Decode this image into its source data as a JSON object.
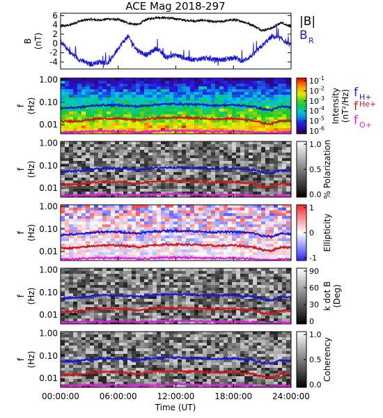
{
  "title": "ACE Mag 2018-297",
  "chart_data": {
    "type": "line",
    "title": "ACE Mag 2018-297",
    "xlabel": "Time (UT)",
    "x_ticks": [
      "00:00:00",
      "06:00:00",
      "12:00:00",
      "18:00:00",
      "24:00:00"
    ],
    "x_range_hours": [
      0,
      24
    ],
    "top_panel": {
      "ylabel_top": "B",
      "ylabel_bottom": "(nT)",
      "ylim": [
        -5.5,
        6.5
      ],
      "y_ticks": [
        "6",
        "4",
        "2",
        "0",
        "-2",
        "-4"
      ],
      "y_tick_values": [
        6,
        4,
        2,
        0,
        -2,
        -4
      ],
      "legend": [
        {
          "label": "|B|",
          "color": "#000000"
        },
        {
          "label": "B",
          "sub": "R",
          "color": "#1a1acc"
        }
      ],
      "series": [
        {
          "name": "|B|",
          "color": "#000000",
          "x": [
            0,
            1,
            2,
            3,
            4,
            5,
            6,
            7,
            8,
            9,
            10,
            11,
            12,
            13,
            14,
            15,
            16,
            17,
            18,
            19,
            20,
            21,
            22,
            23,
            24
          ],
          "y": [
            3.6,
            4.0,
            4.8,
            5.2,
            5.0,
            5.3,
            5.1,
            4.4,
            4.0,
            5.2,
            5.6,
            5.5,
            5.3,
            5.0,
            4.8,
            5.0,
            4.6,
            4.8,
            5.1,
            4.7,
            3.9,
            2.8,
            3.3,
            4.5,
            3.6
          ]
        },
        {
          "name": "B",
          "color": "#1a1acc",
          "x": [
            0,
            1,
            2,
            3,
            4,
            5,
            6,
            7,
            8,
            9,
            10,
            11,
            12,
            13,
            14,
            15,
            16,
            17,
            18,
            19,
            20,
            21,
            22,
            23,
            24
          ],
          "y": [
            0.5,
            -2.0,
            -3.5,
            -4.5,
            -4.0,
            -4.2,
            -1.0,
            1.5,
            -1.5,
            -2.5,
            -1.0,
            -3.0,
            -2.5,
            -3.2,
            -3.5,
            -3.2,
            -3.5,
            -3.5,
            -3.0,
            -3.8,
            -2.5,
            -0.5,
            1.5,
            1.0,
            -0.5
          ]
        }
      ]
    },
    "freq_panels": [
      {
        "kind": "spectrogram",
        "palette": "rainbow",
        "colorbar_title": "Intensity",
        "colorbar_unit": "(nT²/Hz)",
        "colorbar_ticks": [
          "10",
          "10",
          "10",
          "10",
          "10",
          "10"
        ],
        "colorbar_exponents": [
          "-1",
          "-2",
          "-3",
          "-4",
          "-5",
          "-6"
        ],
        "gyro_legend": [
          {
            "base": "f",
            "sub": "H+",
            "color": "#1a1acc"
          },
          {
            "base": "f",
            "sub": "He+",
            "color": "#cc1a1a"
          },
          {
            "base": "f",
            "sub": "O+",
            "color": "#e020e0"
          }
        ]
      },
      {
        "kind": "polarization",
        "palette": "gray",
        "colorbar_title": "% Polarization",
        "colorbar_ticks": [
          "1.0",
          "0.5",
          "0.0"
        ]
      },
      {
        "kind": "ellipticity",
        "palette": "diverging",
        "colorbar_title": "Ellipticity",
        "colorbar_ticks": [
          "1",
          "0",
          "-1"
        ]
      },
      {
        "kind": "wave-normal-angle",
        "palette": "gray",
        "colorbar_title": "k dot B",
        "colorbar_unit": "(Deg)",
        "colorbar_ticks": [
          "90",
          "60",
          "30",
          "0"
        ]
      },
      {
        "kind": "coherence",
        "palette": "gray",
        "colorbar_title": "Coherency",
        "colorbar_ticks": [
          "1.0",
          "0.5",
          "0.0"
        ]
      }
    ],
    "freq_axis": {
      "ylabel_top": "f",
      "ylabel_bottom": "(Hz)",
      "scale": "log",
      "ylim": [
        0.004,
        1.2
      ],
      "y_ticks": [
        "1.00",
        "0.10",
        "0.01"
      ],
      "y_tick_values": [
        1.0,
        0.1,
        0.01
      ]
    },
    "gyrofrequency_series": [
      {
        "name": "f_H+",
        "color": "#1a1acc",
        "x": [
          0,
          2,
          4,
          6,
          8,
          10,
          12,
          14,
          16,
          18,
          20,
          21,
          22,
          23,
          24
        ],
        "y": [
          0.055,
          0.06,
          0.075,
          0.075,
          0.065,
          0.08,
          0.085,
          0.08,
          0.073,
          0.076,
          0.066,
          0.05,
          0.045,
          0.065,
          0.06
        ]
      },
      {
        "name": "f_He+",
        "color": "#cc1a1a",
        "x": [
          0,
          2,
          4,
          6,
          8,
          10,
          12,
          14,
          16,
          18,
          20,
          21,
          22,
          23,
          24
        ],
        "y": [
          0.014,
          0.015,
          0.019,
          0.019,
          0.016,
          0.02,
          0.021,
          0.02,
          0.018,
          0.019,
          0.016,
          0.012,
          0.011,
          0.016,
          0.015
        ]
      },
      {
        "name": "f_O+",
        "color": "#e020e0",
        "x": [
          0,
          2,
          4,
          6,
          8,
          10,
          12,
          14,
          16,
          18,
          20,
          21,
          22,
          23,
          24
        ],
        "y": [
          0.0045,
          0.0048,
          0.0052,
          0.0052,
          0.0048,
          0.0052,
          0.0055,
          0.0053,
          0.005,
          0.0052,
          0.0047,
          0.0042,
          0.004,
          0.0048,
          0.0046
        ]
      }
    ]
  }
}
